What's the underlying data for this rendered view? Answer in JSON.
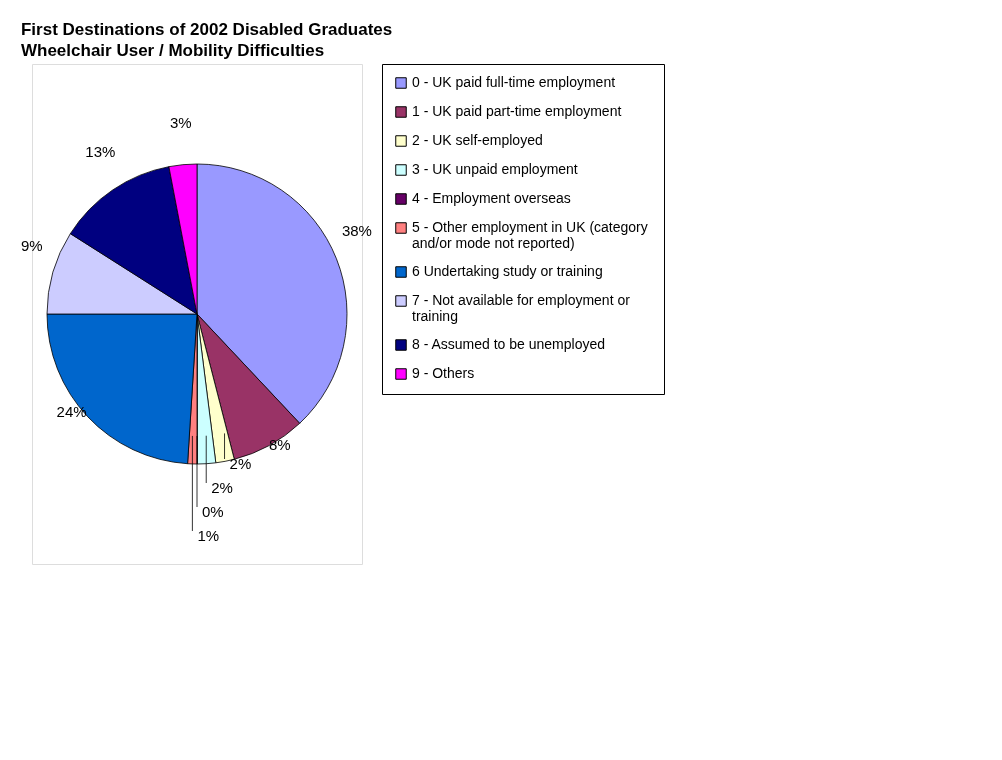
{
  "chart_data": {
    "type": "pie",
    "title": "First Destinations of 2002 Disabled Graduates",
    "subtitle": "Wheelchair User / Mobility Difficulties",
    "categories": [
      "0 - UK paid full-time employment",
      "1 - UK paid part-time employment",
      "2 - UK self-employed",
      "3 - UK unpaid employment",
      "4 - Employment overseas",
      "5  - Other employment in UK (category and/or mode not reported)",
      "6 Undertaking study or training",
      "7 - Not available for employment or training",
      "8 - Assumed to be unemployed",
      "9 - Others"
    ],
    "values": [
      38,
      8,
      2,
      2,
      0,
      1,
      24,
      9,
      13,
      3
    ],
    "value_labels": [
      "38%",
      "8%",
      "2%",
      "2%",
      "0%",
      "1%",
      "24%",
      "9%",
      "13%",
      "3%"
    ],
    "colors": [
      "#9999ff",
      "#993366",
      "#ffffcc",
      "#ccffff",
      "#660066",
      "#ff8080",
      "#0066cc",
      "#ccccff",
      "#000080",
      "#ff00ff"
    ],
    "legend": "right"
  }
}
